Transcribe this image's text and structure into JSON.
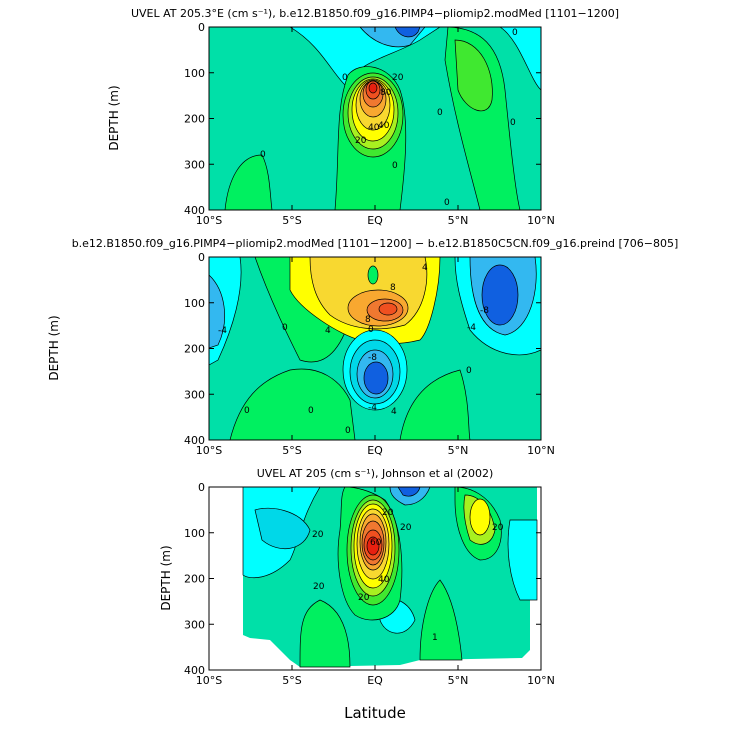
{
  "figure": {
    "xlabel": "Latitude"
  },
  "chart_data": [
    {
      "type": "heatmap",
      "title": "UVEL AT 205.3°E (cm s⁻¹), b.e12.B1850.f09_g16.PIMP4−pliomip2.modMed [1101−1200]",
      "ylabel": "DEPTH (m)",
      "xlabel": "",
      "x_ticks": [
        "10°S",
        "5°S",
        "EQ",
        "5°N",
        "10°N"
      ],
      "y_ticks": [
        "0",
        "100",
        "200",
        "300",
        "400"
      ],
      "xlim": [
        -10,
        10
      ],
      "ylim": [
        400,
        0
      ],
      "contour_labels": [
        "0",
        "0",
        "0",
        "0",
        "0",
        "20",
        "40",
        "80",
        "20",
        "40",
        "0",
        "0"
      ],
      "features": [
        {
          "lat": 0,
          "depth": 135,
          "value": 90,
          "kind": "max"
        },
        {
          "lat": 6,
          "depth": 120,
          "value": 10,
          "kind": "positive"
        },
        {
          "lat": 2.5,
          "depth": 15,
          "value": -20,
          "kind": "min"
        }
      ]
    },
    {
      "type": "heatmap",
      "title": "b.e12.B1850.f09_g16.PIMP4−pliomip2.modMed [1101−1200] − b.e12.B1850C5CN.f09_g16.preind [706−805]",
      "ylabel": "DEPTH (m)",
      "xlabel": "",
      "x_ticks": [
        "10°S",
        "5°S",
        "EQ",
        "5°N",
        "10°N"
      ],
      "y_ticks": [
        "0",
        "100",
        "200",
        "300",
        "400"
      ],
      "xlim": [
        -10,
        10
      ],
      "ylim": [
        400,
        0
      ],
      "contour_labels": [
        "-4",
        "0",
        "0",
        "4",
        "8",
        "8",
        "4",
        "-4",
        "-8",
        "-8",
        "-4",
        "0",
        "0",
        "0",
        "4",
        "0"
      ],
      "features": [
        {
          "lat": 0,
          "depth": 110,
          "value": 14,
          "kind": "max"
        },
        {
          "lat": 0,
          "depth": 250,
          "value": -14,
          "kind": "min"
        },
        {
          "lat": 7.5,
          "depth": 100,
          "value": -12,
          "kind": "min"
        },
        {
          "lat": -9,
          "depth": 130,
          "value": -6,
          "kind": "min"
        }
      ]
    },
    {
      "type": "heatmap",
      "title": "UVEL AT 205 (cm s⁻¹), Johnson et al (2002)",
      "ylabel": "DEPTH (m)",
      "xlabel": "Latitude",
      "x_ticks": [
        "10°S",
        "5°S",
        "EQ",
        "5°N",
        "10°N"
      ],
      "y_ticks": [
        "0",
        "100",
        "200",
        "300",
        "400"
      ],
      "xlim": [
        -10,
        10
      ],
      "ylim": [
        400,
        0
      ],
      "contour_labels": [
        "20",
        "20",
        "60",
        "40",
        "20",
        "20",
        "20",
        "1",
        "20"
      ],
      "features": [
        {
          "lat": 0,
          "depth": 130,
          "value": 100,
          "kind": "max"
        },
        {
          "lat": 6,
          "depth": 80,
          "value": 30,
          "kind": "positive"
        },
        {
          "lat": 2,
          "depth": 15,
          "value": -30,
          "kind": "min"
        }
      ]
    }
  ],
  "colors": {
    "cyan_light": "#00ffff",
    "cyan_mid": "#00d8e8",
    "blue_light": "#33b8f0",
    "blue_dark": "#1060e0",
    "teal": "#00e0a8",
    "green_light": "#00f060",
    "green": "#40e830",
    "lime": "#a8f020",
    "yellow": "#ffff00",
    "gold": "#f8d830",
    "orange": "#f8a830",
    "orange_dark": "#f07830",
    "red_orange": "#f05020",
    "red": "#e82010",
    "contour": "#000000"
  }
}
